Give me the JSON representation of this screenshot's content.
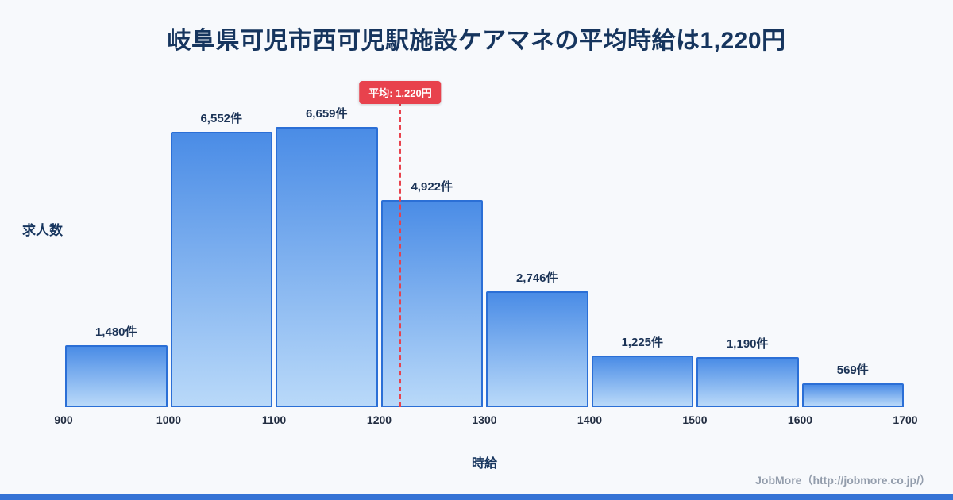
{
  "page": {
    "title": "岐阜県可児市西可児駅施設ケアマネの平均時給は1,220円",
    "footer_credit": "JobMore（http://jobmore.co.jp/）"
  },
  "chart_data": {
    "type": "bar",
    "title": "岐阜県可児市西可児駅施設ケアマネの平均時給は1,220円",
    "xlabel": "時給",
    "ylabel": "求人数",
    "bin_edges": [
      900,
      1000,
      1100,
      1200,
      1300,
      1400,
      1500,
      1600,
      1700
    ],
    "x_tick_labels": [
      "900",
      "1000",
      "1100",
      "1200",
      "1300",
      "1400",
      "1500",
      "1600",
      "1700"
    ],
    "values": [
      1480,
      6552,
      6659,
      4922,
      2746,
      1225,
      1190,
      569
    ],
    "bar_labels": [
      "1,480件",
      "6,552件",
      "6,659件",
      "4,922件",
      "2,746件",
      "1,225件",
      "1,190件",
      "569件"
    ],
    "average": {
      "value": 1220,
      "label": "平均: 1,220円"
    },
    "ylim": [
      0,
      7000
    ],
    "grid": false,
    "legend": false,
    "colors": {
      "background": "#f7f9fc",
      "title": "#16355e",
      "bar_top": "#4a8ce6",
      "bar_bottom": "#b9d9f9",
      "bar_border": "#2b6fd6",
      "accent_red": "#e8424d",
      "bottom_strip": "#3573d6",
      "footer": "#939dac"
    }
  }
}
